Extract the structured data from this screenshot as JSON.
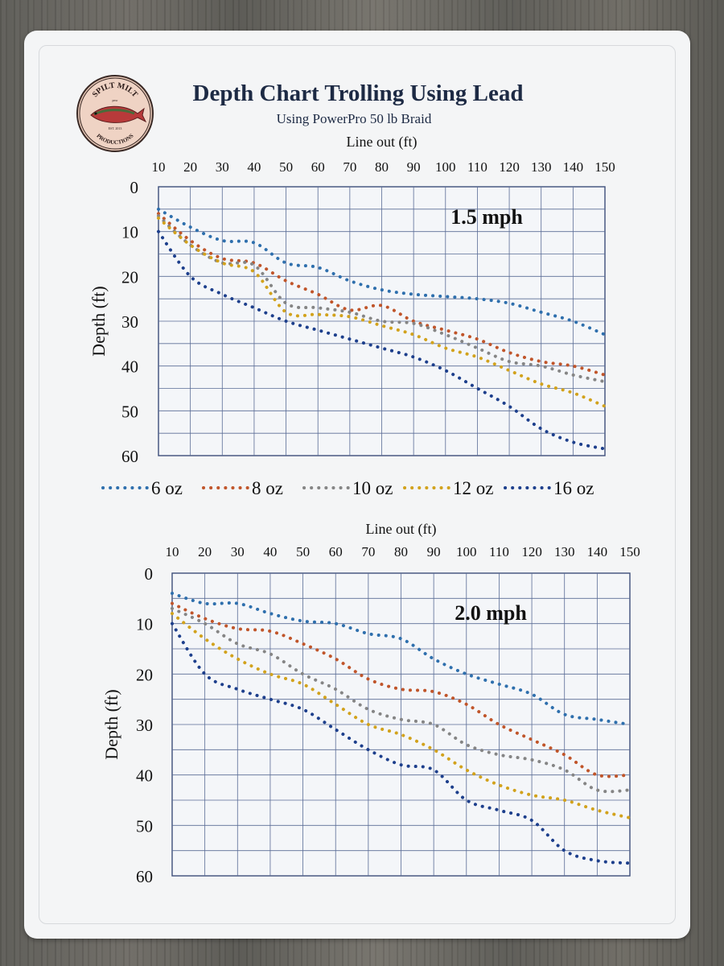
{
  "logo": {
    "text_top": "SPILT MILT",
    "text_bottom": "PRODUCTIONS",
    "small_top": "pnw",
    "small_bottom": "EST. 2013"
  },
  "title": "Depth Chart Trolling Using Lead",
  "subtitle": "Using PowerPro 50 lb Braid",
  "colors": {
    "6 oz": "#2e6fad",
    "8 oz": "#c0552a",
    "10 oz": "#858585",
    "12 oz": "#d2a21c",
    "16 oz": "#1d3f8c"
  },
  "chart_data": [
    {
      "type": "scatter",
      "title": "1.5 mph",
      "xlabel": "Line out (ft)",
      "ylabel": "Depth (ft)",
      "x_ticks": [
        10,
        20,
        30,
        40,
        50,
        60,
        70,
        80,
        90,
        100,
        110,
        120,
        130,
        140,
        150
      ],
      "y_ticks": [
        0,
        10,
        20,
        30,
        40,
        50,
        60
      ],
      "xlim": [
        10,
        150
      ],
      "ylim": [
        0,
        60
      ],
      "y_inverted": true,
      "x_axis_position": "top",
      "grid": true,
      "legend": "between charts",
      "series": [
        {
          "name": "6 oz",
          "points": [
            [
              10,
              5
            ],
            [
              20,
              9
            ],
            [
              30,
              12
            ],
            [
              40,
              12.5
            ],
            [
              50,
              17
            ],
            [
              60,
              18
            ],
            [
              70,
              21
            ],
            [
              80,
              23
            ],
            [
              90,
              24
            ],
            [
              100,
              24.5
            ],
            [
              110,
              25
            ],
            [
              120,
              26
            ],
            [
              130,
              28
            ],
            [
              140,
              30
            ],
            [
              150,
              33
            ]
          ]
        },
        {
          "name": "8 oz",
          "points": [
            [
              10,
              6
            ],
            [
              20,
              12
            ],
            [
              30,
              16
            ],
            [
              40,
              17
            ],
            [
              50,
              21
            ],
            [
              60,
              24
            ],
            [
              70,
              27.5
            ],
            [
              80,
              26.5
            ],
            [
              90,
              30
            ],
            [
              100,
              32
            ],
            [
              110,
              34
            ],
            [
              120,
              37
            ],
            [
              130,
              39
            ],
            [
              140,
              40
            ],
            [
              150,
              42
            ]
          ]
        },
        {
          "name": "10 oz",
          "points": [
            [
              10,
              6.5
            ],
            [
              20,
              13
            ],
            [
              30,
              17
            ],
            [
              40,
              17.5
            ],
            [
              50,
              26
            ],
            [
              60,
              27
            ],
            [
              70,
              28
            ],
            [
              80,
              30
            ],
            [
              90,
              30.5
            ],
            [
              100,
              33
            ],
            [
              110,
              36
            ],
            [
              120,
              39
            ],
            [
              130,
              40
            ],
            [
              140,
              42
            ],
            [
              150,
              43.5
            ]
          ]
        },
        {
          "name": "12 oz",
          "points": [
            [
              10,
              7
            ],
            [
              20,
              13
            ],
            [
              30,
              17
            ],
            [
              40,
              19
            ],
            [
              50,
              28
            ],
            [
              60,
              28.5
            ],
            [
              70,
              29
            ],
            [
              80,
              31
            ],
            [
              90,
              33
            ],
            [
              100,
              36
            ],
            [
              110,
              38
            ],
            [
              120,
              41
            ],
            [
              130,
              44
            ],
            [
              140,
              46
            ],
            [
              150,
              49
            ]
          ]
        },
        {
          "name": "16 oz",
          "points": [
            [
              10,
              10
            ],
            [
              20,
              20
            ],
            [
              30,
              24
            ],
            [
              40,
              27
            ],
            [
              50,
              30
            ],
            [
              60,
              32
            ],
            [
              70,
              34
            ],
            [
              80,
              36
            ],
            [
              90,
              38
            ],
            [
              100,
              41
            ],
            [
              110,
              45
            ],
            [
              120,
              49
            ],
            [
              130,
              54
            ],
            [
              140,
              57
            ],
            [
              150,
              58.5
            ]
          ]
        }
      ]
    },
    {
      "type": "scatter",
      "title": "2.0 mph",
      "xlabel": "Line out (ft)",
      "ylabel": "Depth (ft)",
      "x_ticks": [
        10,
        20,
        30,
        40,
        50,
        60,
        70,
        80,
        90,
        100,
        110,
        120,
        130,
        140,
        150
      ],
      "y_ticks": [
        0,
        10,
        20,
        30,
        40,
        50,
        60
      ],
      "xlim": [
        10,
        150
      ],
      "ylim": [
        0,
        60
      ],
      "y_inverted": true,
      "x_axis_position": "top",
      "grid": true,
      "series": [
        {
          "name": "6 oz",
          "points": [
            [
              10,
              4
            ],
            [
              20,
              6
            ],
            [
              30,
              6
            ],
            [
              40,
              8
            ],
            [
              50,
              9.5
            ],
            [
              60,
              10
            ],
            [
              70,
              12
            ],
            [
              80,
              13
            ],
            [
              90,
              17
            ],
            [
              100,
              20
            ],
            [
              110,
              22
            ],
            [
              120,
              24
            ],
            [
              130,
              28
            ],
            [
              140,
              29
            ],
            [
              150,
              30
            ]
          ]
        },
        {
          "name": "8 oz",
          "points": [
            [
              10,
              6
            ],
            [
              20,
              9
            ],
            [
              30,
              11
            ],
            [
              40,
              11.5
            ],
            [
              50,
              14
            ],
            [
              60,
              17
            ],
            [
              70,
              21
            ],
            [
              80,
              23
            ],
            [
              90,
              23.5
            ],
            [
              100,
              26
            ],
            [
              110,
              30
            ],
            [
              120,
              33
            ],
            [
              130,
              36
            ],
            [
              140,
              40
            ],
            [
              150,
              40
            ]
          ]
        },
        {
          "name": "10 oz",
          "points": [
            [
              10,
              7
            ],
            [
              20,
              10
            ],
            [
              30,
              14
            ],
            [
              40,
              16
            ],
            [
              50,
              20
            ],
            [
              60,
              23
            ],
            [
              70,
              27
            ],
            [
              80,
              29
            ],
            [
              90,
              30
            ],
            [
              100,
              34
            ],
            [
              110,
              36
            ],
            [
              120,
              37
            ],
            [
              130,
              39
            ],
            [
              140,
              43
            ],
            [
              150,
              43
            ]
          ]
        },
        {
          "name": "12 oz",
          "points": [
            [
              10,
              8
            ],
            [
              20,
              13
            ],
            [
              30,
              17
            ],
            [
              40,
              20
            ],
            [
              50,
              22
            ],
            [
              60,
              26
            ],
            [
              70,
              30
            ],
            [
              80,
              32
            ],
            [
              90,
              35
            ],
            [
              100,
              39
            ],
            [
              110,
              42
            ],
            [
              120,
              44
            ],
            [
              130,
              45
            ],
            [
              140,
              47
            ],
            [
              150,
              48.5
            ]
          ]
        },
        {
          "name": "16 oz",
          "points": [
            [
              10,
              10
            ],
            [
              20,
              20
            ],
            [
              30,
              23
            ],
            [
              40,
              25
            ],
            [
              50,
              27
            ],
            [
              60,
              31
            ],
            [
              70,
              35
            ],
            [
              80,
              38
            ],
            [
              90,
              39
            ],
            [
              100,
              45
            ],
            [
              110,
              47
            ],
            [
              120,
              49
            ],
            [
              130,
              55
            ],
            [
              140,
              57
            ],
            [
              150,
              57.5
            ]
          ]
        }
      ]
    }
  ]
}
